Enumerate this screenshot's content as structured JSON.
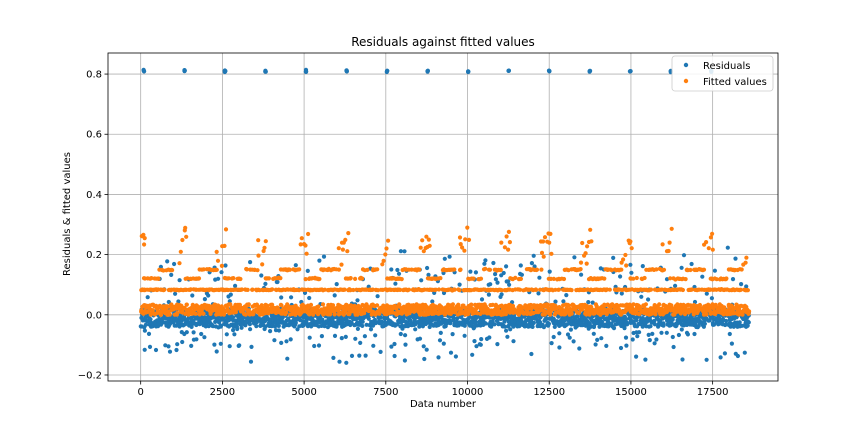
{
  "chart_data": {
    "type": "scatter",
    "title": "Residuals against fitted values",
    "xlabel": "Data number",
    "ylabel": "Residuals & fitted values",
    "xlim": [
      -1000,
      19500
    ],
    "ylim": [
      -0.22,
      0.87
    ],
    "xticks": [
      0,
      2500,
      5000,
      7500,
      10000,
      12500,
      15000,
      17500
    ],
    "xtick_labels": [
      "0",
      "2500",
      "5000",
      "7500",
      "10000",
      "12500",
      "15000",
      "17500"
    ],
    "yticks": [
      -0.2,
      0.0,
      0.2,
      0.4,
      0.6,
      0.8
    ],
    "ytick_labels": [
      "−0.2",
      "0.0",
      "0.2",
      "0.4",
      "0.6",
      "0.8"
    ],
    "grid": true,
    "legend_position": "top-right",
    "colors": {
      "residuals": "#1f77b4",
      "fitted": "#ff7f0e"
    },
    "n_points": 18600,
    "period": 1240,
    "series": [
      {
        "name": "Residuals",
        "key": "residuals",
        "description_values": {
          "band_range": [
            -0.04,
            0.02
          ],
          "outlier_spike_value": 0.81,
          "spike_x": [
            100,
            1340,
            2580,
            3820,
            5060,
            6300,
            7540,
            8780,
            10020,
            11260,
            12500,
            13740,
            14980,
            16220,
            17460
          ],
          "upper_tail_max": 0.23,
          "lower_tail_min": -0.16
        }
      },
      {
        "name": "Fitted values",
        "key": "fitted",
        "description_values": {
          "base_band": [
            0.0,
            0.035
          ],
          "level_lines": [
            0.083,
            0.12,
            0.15
          ],
          "peak_range": [
            0.2,
            0.29
          ]
        }
      }
    ]
  }
}
